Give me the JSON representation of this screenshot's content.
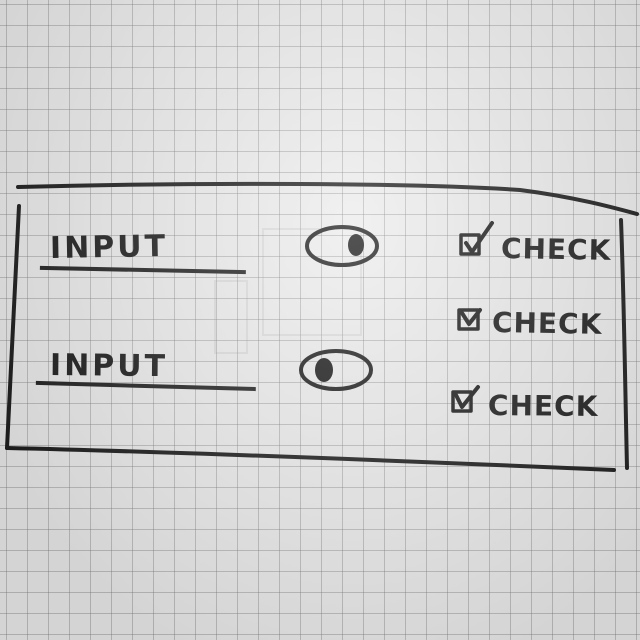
{
  "form": {
    "inputs": [
      {
        "label": "INPUT"
      },
      {
        "label": "INPUT"
      }
    ],
    "checks": [
      {
        "label": "CHECK",
        "checked": true
      },
      {
        "label": "CHECK",
        "checked": true
      },
      {
        "label": "CHECK",
        "checked": true
      }
    ],
    "toggles": [
      {
        "state": "on"
      },
      {
        "state": "off"
      }
    ]
  }
}
